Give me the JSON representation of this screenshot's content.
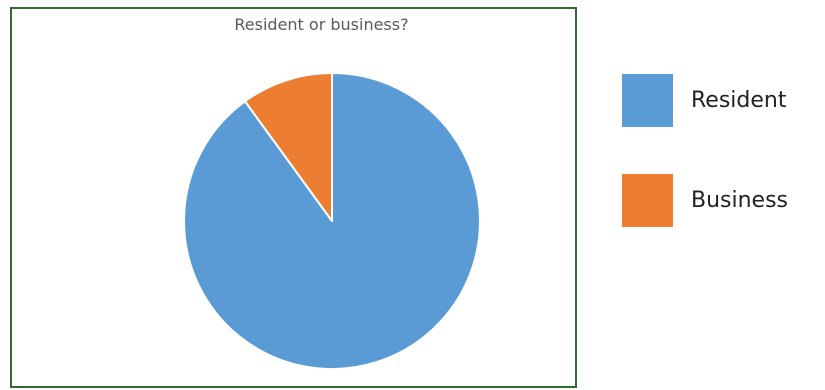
{
  "chart_data": {
    "type": "pie",
    "title": "Resident or business?",
    "categories": [
      "Resident",
      "Business"
    ],
    "values": [
      90,
      10
    ],
    "unit": "percent",
    "colors": [
      "#5b9bd5",
      "#ed7d31"
    ],
    "slice_border_color": "#ffffff",
    "frame_color": "#2e6b35",
    "legend_placement": "right",
    "start_angle_deg": 0,
    "direction": "clockwise"
  }
}
